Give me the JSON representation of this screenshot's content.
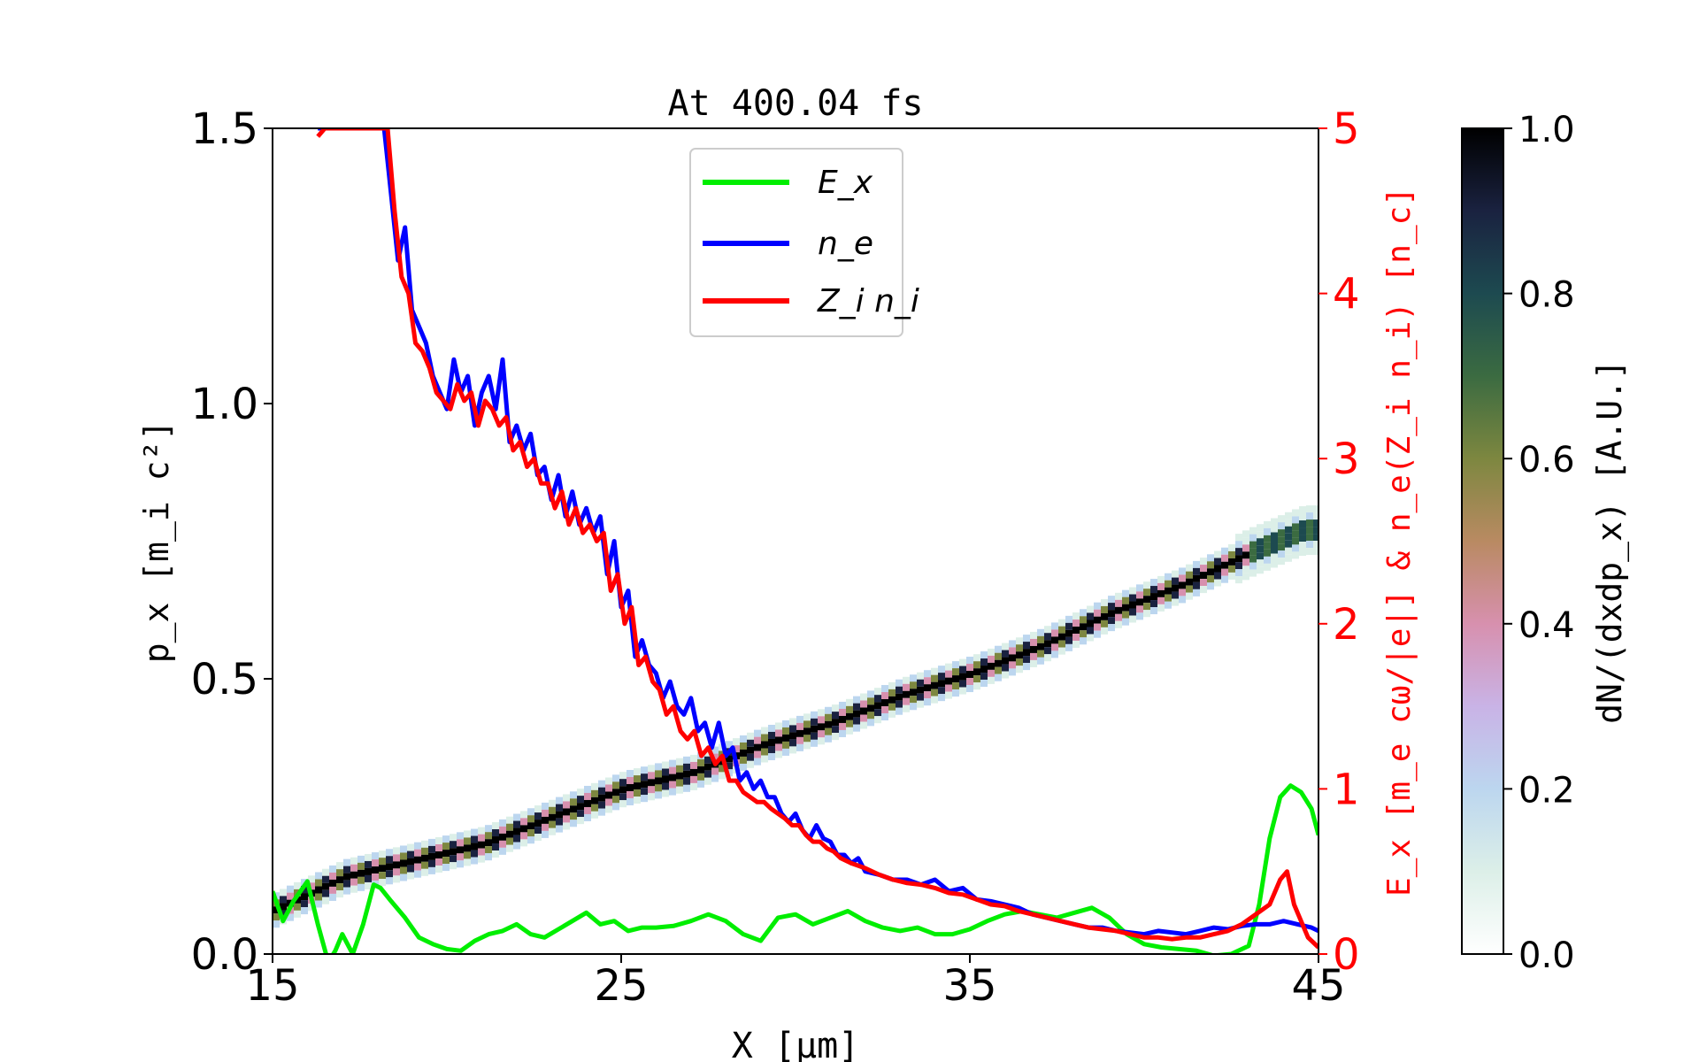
{
  "chart_data": {
    "type": "line",
    "title": "At 400.04 fs",
    "xlabel": "X [μm]",
    "xlim": [
      15,
      45
    ],
    "xticks": [
      "15",
      "25",
      "35",
      "45"
    ],
    "ylabel_left": "p_x [m_i c²]",
    "ylim_left": [
      0.0,
      1.5
    ],
    "yticks_left": [
      "0.0",
      "0.5",
      "1.0",
      "1.5"
    ],
    "ylabel_right": "E_x [m_e cω/|e|] & n_e(Z_i n_i) [n_c]",
    "ylim_right": [
      0,
      5
    ],
    "yticks_right": [
      "0",
      "1",
      "2",
      "3",
      "4",
      "5"
    ],
    "right_axis_color": "#ff0000",
    "colorbar": {
      "label": "dN/(dxdp_x) [A.U.]",
      "range": [
        0.0,
        1.0
      ],
      "ticks": [
        "0.0",
        "0.2",
        "0.4",
        "0.6",
        "0.8",
        "1.0"
      ],
      "colormap": "cubehelix_r"
    },
    "legend": {
      "placement": "upper center",
      "entries": [
        {
          "label": "E_x",
          "color": "#00ee00"
        },
        {
          "label": "n_e",
          "color": "#0000ff"
        },
        {
          "label": "Z_i n_i",
          "color": "#ff0000"
        }
      ]
    },
    "series": [
      {
        "name": "E_x",
        "axis": "right",
        "color": "#00ee00",
        "x": [
          15,
          15.3,
          15.6,
          16.0,
          16.3,
          16.6,
          16.8,
          17.0,
          17.3,
          17.6,
          17.9,
          18.1,
          18.4,
          18.8,
          19.2,
          19.6,
          20.0,
          20.4,
          20.8,
          21.2,
          21.6,
          22.0,
          22.4,
          22.8,
          23.2,
          23.6,
          24.0,
          24.4,
          24.8,
          25.2,
          25.6,
          26.0,
          26.5,
          27.0,
          27.5,
          28.0,
          28.5,
          29.0,
          29.5,
          30.0,
          30.5,
          31.0,
          31.5,
          32.0,
          32.5,
          33.0,
          33.5,
          34.0,
          34.5,
          35.0,
          35.5,
          36.0,
          36.5,
          37.0,
          37.5,
          38.0,
          38.5,
          39.0,
          39.5,
          40.0,
          40.5,
          41.0,
          41.5,
          42.0,
          42.5,
          43.0,
          43.3,
          43.6,
          43.9,
          44.2,
          44.5,
          44.8,
          45.0
        ],
        "y": [
          0.38,
          0.2,
          0.32,
          0.44,
          0.18,
          -0.05,
          0.02,
          0.12,
          0.0,
          0.18,
          0.42,
          0.4,
          0.32,
          0.22,
          0.1,
          0.06,
          0.03,
          0.02,
          0.08,
          0.12,
          0.14,
          0.18,
          0.12,
          0.1,
          0.15,
          0.2,
          0.25,
          0.18,
          0.2,
          0.14,
          0.16,
          0.16,
          0.17,
          0.2,
          0.24,
          0.2,
          0.12,
          0.08,
          0.22,
          0.24,
          0.18,
          0.22,
          0.26,
          0.2,
          0.16,
          0.14,
          0.16,
          0.12,
          0.12,
          0.15,
          0.2,
          0.24,
          0.26,
          0.24,
          0.22,
          0.25,
          0.28,
          0.22,
          0.12,
          0.06,
          0.04,
          0.03,
          0.02,
          -0.01,
          0.0,
          0.05,
          0.3,
          0.7,
          0.95,
          1.02,
          0.98,
          0.88,
          0.72
        ]
      },
      {
        "name": "n_e",
        "axis": "right",
        "color": "#0000ff",
        "x": [
          16.3,
          16.5,
          18.2,
          18.4,
          18.6,
          18.8,
          19.0,
          19.2,
          19.4,
          19.6,
          19.8,
          20.0,
          20.2,
          20.4,
          20.6,
          20.8,
          21.0,
          21.2,
          21.4,
          21.6,
          21.8,
          22.0,
          22.2,
          22.4,
          22.6,
          22.8,
          23.0,
          23.2,
          23.4,
          23.6,
          23.8,
          24.0,
          24.2,
          24.4,
          24.6,
          24.8,
          25.0,
          25.2,
          25.4,
          25.6,
          25.8,
          26.0,
          26.2,
          26.4,
          26.6,
          26.8,
          27.0,
          27.2,
          27.4,
          27.6,
          27.8,
          28.0,
          28.2,
          28.4,
          28.6,
          28.8,
          29.0,
          29.2,
          29.4,
          29.6,
          29.8,
          30.0,
          30.2,
          30.4,
          30.6,
          30.8,
          31.0,
          31.2,
          31.4,
          31.6,
          31.8,
          32.0,
          32.4,
          32.8,
          33.2,
          33.6,
          34.0,
          34.4,
          34.8,
          35.2,
          35.6,
          36.0,
          36.4,
          36.8,
          37.2,
          37.6,
          38.0,
          38.4,
          38.8,
          39.2,
          39.6,
          40.0,
          40.4,
          40.8,
          41.2,
          41.6,
          42.0,
          42.4,
          42.8,
          43.2,
          43.6,
          44.0,
          44.4,
          44.8,
          45.0
        ],
        "y": [
          5.0,
          5.0,
          5.0,
          4.6,
          4.2,
          4.4,
          3.9,
          3.8,
          3.7,
          3.5,
          3.4,
          3.3,
          3.6,
          3.4,
          3.5,
          3.2,
          3.4,
          3.5,
          3.3,
          3.6,
          3.1,
          3.2,
          3.05,
          3.15,
          2.9,
          2.95,
          2.75,
          2.9,
          2.65,
          2.8,
          2.6,
          2.7,
          2.55,
          2.65,
          2.3,
          2.5,
          2.1,
          2.2,
          1.8,
          1.9,
          1.75,
          1.7,
          1.55,
          1.65,
          1.5,
          1.45,
          1.55,
          1.35,
          1.4,
          1.25,
          1.4,
          1.2,
          1.25,
          1.05,
          1.1,
          1.0,
          1.05,
          0.95,
          0.95,
          0.85,
          0.8,
          0.85,
          0.75,
          0.7,
          0.78,
          0.7,
          0.68,
          0.6,
          0.6,
          0.55,
          0.58,
          0.5,
          0.48,
          0.45,
          0.45,
          0.42,
          0.45,
          0.38,
          0.4,
          0.33,
          0.32,
          0.3,
          0.28,
          0.24,
          0.22,
          0.2,
          0.18,
          0.16,
          0.16,
          0.14,
          0.13,
          0.12,
          0.14,
          0.13,
          0.12,
          0.14,
          0.16,
          0.15,
          0.17,
          0.18,
          0.18,
          0.2,
          0.18,
          0.16,
          0.14
        ]
      },
      {
        "name": "Z_i n_i",
        "axis": "right",
        "color": "#ff0000",
        "x": [
          16.3,
          16.5,
          18.3,
          18.5,
          18.7,
          18.9,
          19.1,
          19.3,
          19.5,
          19.7,
          19.9,
          20.1,
          20.3,
          20.5,
          20.7,
          20.9,
          21.1,
          21.3,
          21.5,
          21.7,
          21.9,
          22.1,
          22.3,
          22.5,
          22.7,
          22.9,
          23.1,
          23.3,
          23.5,
          23.7,
          23.9,
          24.1,
          24.3,
          24.5,
          24.7,
          24.9,
          25.1,
          25.3,
          25.5,
          25.7,
          25.9,
          26.1,
          26.3,
          26.5,
          26.7,
          26.9,
          27.1,
          27.3,
          27.5,
          27.7,
          27.9,
          28.1,
          28.3,
          28.5,
          28.7,
          28.9,
          29.1,
          29.3,
          29.5,
          29.7,
          29.9,
          30.1,
          30.3,
          30.5,
          30.7,
          30.9,
          31.1,
          31.3,
          31.6,
          32.0,
          32.4,
          32.8,
          33.2,
          33.6,
          34.0,
          34.4,
          34.8,
          35.2,
          35.6,
          36.0,
          36.4,
          36.8,
          37.2,
          37.6,
          38.0,
          38.4,
          38.8,
          39.2,
          39.6,
          40.0,
          40.4,
          40.8,
          41.2,
          41.6,
          42.0,
          42.4,
          42.8,
          43.2,
          43.6,
          43.9,
          44.1,
          44.3,
          44.5,
          44.7,
          45.0
        ],
        "y": [
          4.95,
          5.0,
          5.0,
          4.5,
          4.1,
          4.0,
          3.7,
          3.65,
          3.55,
          3.4,
          3.35,
          3.3,
          3.45,
          3.35,
          3.4,
          3.2,
          3.35,
          3.3,
          3.2,
          3.25,
          3.05,
          3.1,
          2.95,
          3.0,
          2.85,
          2.85,
          2.7,
          2.8,
          2.6,
          2.7,
          2.55,
          2.6,
          2.5,
          2.55,
          2.2,
          2.3,
          2.0,
          2.1,
          1.75,
          1.8,
          1.65,
          1.6,
          1.45,
          1.5,
          1.35,
          1.3,
          1.35,
          1.2,
          1.25,
          1.15,
          1.2,
          1.05,
          1.05,
          0.98,
          0.95,
          0.92,
          0.92,
          0.88,
          0.85,
          0.82,
          0.78,
          0.78,
          0.72,
          0.68,
          0.68,
          0.64,
          0.62,
          0.58,
          0.55,
          0.52,
          0.48,
          0.45,
          0.43,
          0.42,
          0.4,
          0.37,
          0.36,
          0.33,
          0.3,
          0.29,
          0.26,
          0.24,
          0.22,
          0.2,
          0.18,
          0.16,
          0.15,
          0.14,
          0.12,
          0.1,
          0.1,
          0.09,
          0.1,
          0.1,
          0.12,
          0.14,
          0.18,
          0.24,
          0.3,
          0.45,
          0.5,
          0.3,
          0.2,
          0.1,
          0.04
        ]
      },
      {
        "name": "p_x phase space",
        "axis": "left",
        "type": "heatmap-band",
        "x": [
          15.0,
          17.0,
          19.0,
          21.0,
          23.0,
          25.0,
          27.0,
          29.0,
          31.0,
          33.0,
          35.0,
          37.0,
          39.0,
          41.0,
          43.0,
          44.5,
          45.0
        ],
        "y": [
          0.08,
          0.14,
          0.17,
          0.2,
          0.25,
          0.3,
          0.33,
          0.38,
          0.42,
          0.47,
          0.51,
          0.56,
          0.62,
          0.67,
          0.73,
          0.77,
          0.77
        ]
      }
    ]
  }
}
